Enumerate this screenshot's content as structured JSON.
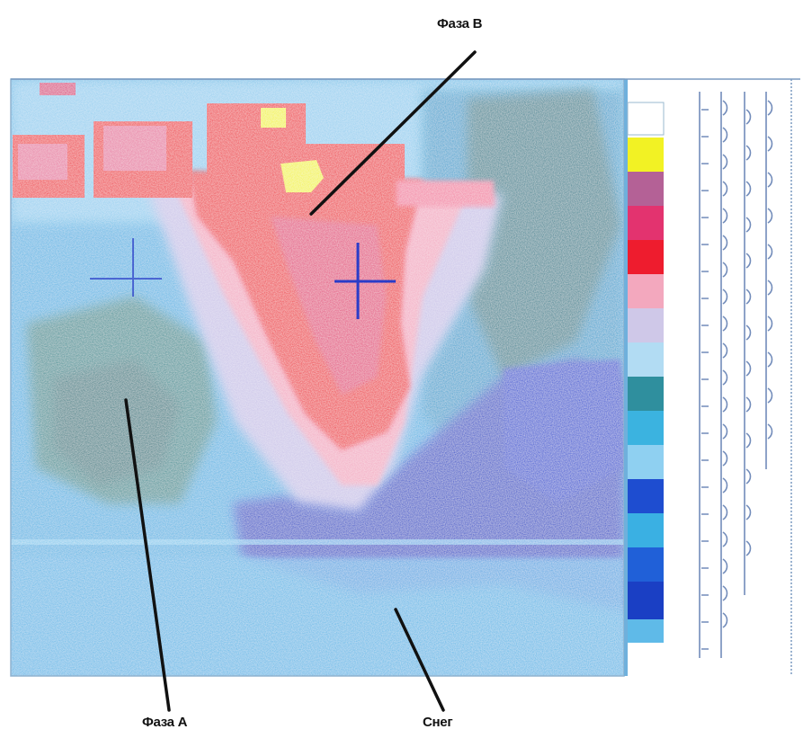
{
  "labels": {
    "phase_b": "Фаза В",
    "phase_a": "Фаза А",
    "snow": "Снег"
  },
  "colors": {
    "hot_red": "#ee1c2e",
    "pink": "#e5306a",
    "light_pink": "#f4a0b8",
    "lavender": "#c7bde6",
    "light_blue": "#7ec7ee",
    "cyan": "#2fb3e6",
    "teal": "#1f7d8a",
    "deep_blue": "#1d3fc9",
    "yellow": "#f2f224",
    "white": "#ffffff"
  },
  "palette_legend": [
    "white",
    "yellow",
    "mauve",
    "pink",
    "red",
    "light-pink",
    "lavender",
    "light-blue",
    "teal",
    "cyan",
    "light-cyan",
    "cyan",
    "blue",
    "blue"
  ]
}
